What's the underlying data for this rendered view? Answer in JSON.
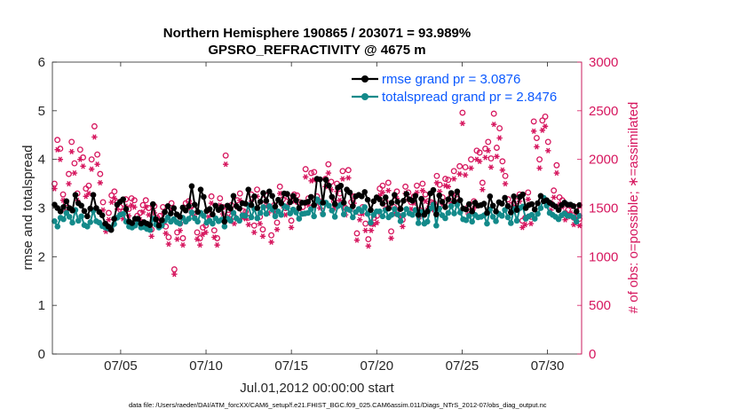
{
  "chart_data": {
    "type": "line",
    "title": "Northern Hemisphere 190865 / 203071 = 93.989%",
    "subtitle": "GPSRO_REFRACTIVITY @ 4675 m",
    "xlabel": "Jul.01,2012 00:00:00 start",
    "ylabel": "rmse and totalspread",
    "ylabel_right": "# of obs: o=possible; ∗=assimilated",
    "footer": "data file: /Users/raeder/DAI/ATM_forcXX/CAM6_setup/f.e21.FHIST_BGC.f09_025.CAM6assim.011/Diags_NTrS_2012-07/obs_diag_output.nc",
    "x_range_days": [
      1,
      32
    ],
    "x_ticks": [
      {
        "day": 5,
        "label": "07/05"
      },
      {
        "day": 10,
        "label": "07/10"
      },
      {
        "day": 15,
        "label": "07/15"
      },
      {
        "day": 20,
        "label": "07/20"
      },
      {
        "day": 25,
        "label": "07/25"
      },
      {
        "day": 30,
        "label": "07/30"
      }
    ],
    "ylim": [
      0,
      6
    ],
    "y_ticks": [
      "0",
      "1",
      "2",
      "3",
      "4",
      "5",
      "6"
    ],
    "ylim_right": [
      0,
      3000
    ],
    "y_ticks_right": [
      "0",
      "500",
      "1000",
      "1500",
      "2000",
      "2500",
      "3000"
    ],
    "legend": {
      "placement": "top-right",
      "entries": [
        "rmse grand pr = 3.0876",
        "totalspread grand pr = 2.8476"
      ]
    },
    "colors": {
      "rmse": "#000000",
      "totalspread": "#138a8a",
      "obs": "#d6165e"
    },
    "series": [
      {
        "name": "rmse",
        "values": [
          3.07,
          3.0,
          2.93,
          3.02,
          3.14,
          3.0,
          2.95,
          3.27,
          3.1,
          3.05,
          2.94,
          2.83,
          2.99,
          3.27,
          3.0,
          2.92,
          2.85,
          2.68,
          2.62,
          2.55,
          2.78,
          3.07,
          3.13,
          3.18,
          2.98,
          2.72,
          2.69,
          2.78,
          2.78,
          2.68,
          2.71,
          2.68,
          2.65,
          3.08,
          2.77,
          2.64,
          2.75,
          2.92,
          3.04,
          2.89,
          3.0,
          2.87,
          2.82,
          3.01,
          2.95,
          3.04,
          3.45,
          3.07,
          2.92,
          3.38,
          3.23,
          2.94,
          2.98,
          2.87,
          3.05,
          2.96,
          3.02,
          2.72,
          3.05,
          2.99,
          3.25,
          3.04,
          2.99,
          3.1,
          3.09,
          3.38,
          3.06,
          3.24,
          3.0,
          3.13,
          3.31,
          3.15,
          3.34,
          3.25,
          3.03,
          3.17,
          3.1,
          3.3,
          3.29,
          3.12,
          3.25,
          3.16,
          3.0,
          3.11,
          3.11,
          3.13,
          3.23,
          3.06,
          3.6,
          3.59,
          3.11,
          3.58,
          3.46,
          3.23,
          3.08,
          3.42,
          3.46,
          3.11,
          3.38,
          3.32,
          3.04,
          3.24,
          3.27,
          3.24,
          3.33,
          3.17,
          2.96,
          3.14,
          3.22,
          3.18,
          3.09,
          3.22,
          2.99,
          3.11,
          3.27,
          3.13,
          2.98,
          3.15,
          3.29,
          3.18,
          3.15,
          3.25,
          2.86,
          3.19,
          2.86,
          2.93,
          3.3,
          3.37,
          2.87,
          3.26,
          3.13,
          3.02,
          3.18,
          3.31,
          3.14,
          3.34,
          3.16,
          2.99,
          2.97,
          3.08,
          2.93,
          3.11,
          3.05,
          3.06,
          3.09,
          2.9,
          3.24,
          3.05,
          2.93,
          3.12,
          3.09,
          3.21,
          3.04,
          2.91,
          3.24,
          2.96,
          3.23,
          3.28,
          3.0,
          3.06,
          3.08,
          2.97,
          3.1,
          3.25,
          3.14,
          3.16,
          3.11,
          3.07,
          3.03,
          2.96,
          3.06,
          3.11,
          3.07,
          3.07,
          3.04,
          2.93,
          3.06
        ]
      },
      {
        "name": "totalspread",
        "values": [
          2.73,
          2.62,
          2.8,
          2.77,
          2.9,
          2.82,
          2.7,
          2.96,
          2.74,
          2.83,
          2.65,
          2.62,
          2.71,
          2.95,
          2.73,
          2.7,
          2.63,
          2.6,
          2.58,
          2.6,
          2.67,
          2.8,
          2.86,
          2.88,
          2.72,
          2.62,
          2.6,
          2.64,
          2.7,
          2.6,
          2.61,
          2.57,
          2.55,
          2.78,
          2.66,
          2.6,
          2.64,
          2.74,
          2.81,
          2.72,
          2.77,
          2.71,
          2.68,
          2.8,
          2.72,
          2.78,
          2.91,
          2.79,
          2.72,
          2.9,
          2.84,
          2.7,
          2.74,
          2.68,
          2.79,
          2.73,
          2.76,
          2.62,
          2.78,
          2.74,
          2.9,
          2.79,
          2.74,
          2.85,
          2.84,
          3.06,
          2.81,
          2.98,
          2.79,
          2.9,
          3.02,
          2.88,
          3.04,
          2.97,
          2.83,
          2.93,
          2.86,
          3.04,
          3.01,
          2.89,
          2.97,
          2.91,
          2.78,
          2.88,
          2.89,
          2.9,
          2.98,
          2.83,
          3.18,
          3.12,
          2.87,
          3.11,
          3.05,
          2.95,
          2.82,
          3.04,
          3.07,
          2.87,
          2.98,
          2.96,
          2.81,
          2.92,
          2.98,
          2.94,
          3.02,
          2.88,
          2.7,
          2.86,
          2.93,
          2.93,
          2.83,
          2.96,
          2.81,
          2.86,
          2.98,
          2.87,
          2.73,
          2.86,
          2.98,
          2.89,
          2.86,
          2.96,
          2.69,
          2.92,
          2.68,
          2.72,
          2.99,
          3.07,
          2.64,
          2.99,
          2.85,
          2.79,
          2.9,
          3.04,
          2.89,
          3.07,
          2.91,
          2.77,
          2.75,
          2.84,
          2.72,
          2.86,
          2.81,
          2.82,
          2.85,
          2.68,
          2.97,
          2.82,
          2.73,
          2.88,
          2.84,
          2.96,
          2.81,
          2.69,
          2.98,
          2.74,
          3.0,
          3.03,
          2.78,
          2.83,
          2.86,
          2.78,
          2.88,
          3.0,
          3.21,
          3.05,
          2.9,
          2.86,
          2.82,
          2.77,
          2.85,
          2.89,
          2.84,
          2.84,
          2.81,
          2.72,
          2.84
        ]
      },
      {
        "name": "obs_possible",
        "values": [
          1750,
          2200,
          2110,
          1640,
          1550,
          1850,
          2180,
          1960,
          1650,
          2100,
          2020,
          1700,
          1730,
          2000,
          2340,
          2050,
          1850,
          1560,
          1330,
          1450,
          1630,
          1670,
          1560,
          1510,
          1460,
          1590,
          1490,
          1600,
          1580,
          1420,
          1450,
          1530,
          1580,
          1500,
          1280,
          1520,
          1400,
          1420,
          1510,
          1310,
          1200,
          1550,
          870,
          1250,
          1340,
          1190,
          1550,
          1570,
          1520,
          1490,
          1250,
          1190,
          1300,
          1320,
          1480,
          1620,
          1270,
          1190,
          1600,
          1510,
          2040,
          1480,
          1530,
          1410,
          1580,
          1650,
          1470,
          1460,
          1400,
          1640,
          1320,
          1690,
          1410,
          1280,
          1630,
          1520,
          1220,
          1530,
          1350,
          1720,
          1590,
          1500,
          1610,
          1370,
          1640,
          1630,
          1560,
          1510,
          1900,
          1600,
          1860,
          1870,
          1620,
          1570,
          1520,
          1800,
          1950,
          1770,
          1570,
          1750,
          1650,
          1880,
          1500,
          1890,
          1560,
          1620,
          1240,
          1450,
          1510,
          1340,
          1180,
          1340,
          1400,
          1420,
          1700,
          1730,
          1570,
          1760,
          1260,
          1510,
          1670,
          1490,
          1380,
          1720,
          1660,
          1560,
          1620,
          1730,
          1480,
          1750,
          1640,
          1570,
          1560,
          1550,
          1830,
          1740,
          1610,
          1800,
          1790,
          1620,
          1880,
          1640,
          1930,
          2480,
          1920,
          1510,
          2000,
          1570,
          2090,
          2070,
          1760,
          2110,
          2180,
          2010,
          2470,
          2120,
          2320,
          1980,
          1830,
          1590,
          1530,
          1550,
          1570,
          1640,
          1370,
          1400,
          1660,
          1410,
          2390,
          2220,
          2000,
          2400,
          2440,
          2180,
          1550,
          1680,
          1940,
          1610,
          1580,
          1450,
          1480,
          1520,
          1400,
          1510,
          1390
        ]
      },
      {
        "name": "obs_assimilated",
        "values": [
          1700,
          2100,
          2000,
          1580,
          1470,
          1750,
          2080,
          1860,
          1580,
          2000,
          1930,
          1620,
          1650,
          1900,
          2230,
          1950,
          1760,
          1480,
          1260,
          1380,
          1560,
          1600,
          1490,
          1440,
          1390,
          1520,
          1420,
          1530,
          1510,
          1350,
          1380,
          1460,
          1510,
          1430,
          1210,
          1450,
          1330,
          1350,
          1440,
          1240,
          1130,
          1480,
          820,
          1180,
          1270,
          1120,
          1480,
          1500,
          1450,
          1420,
          1180,
          1120,
          1230,
          1250,
          1410,
          1550,
          1200,
          1120,
          1530,
          1440,
          1950,
          1410,
          1460,
          1340,
          1510,
          1580,
          1400,
          1390,
          1330,
          1570,
          1250,
          1620,
          1340,
          1210,
          1560,
          1450,
          1150,
          1460,
          1280,
          1650,
          1520,
          1430,
          1540,
          1300,
          1570,
          1560,
          1490,
          1440,
          1820,
          1530,
          1780,
          1790,
          1550,
          1500,
          1450,
          1720,
          1860,
          1690,
          1500,
          1670,
          1580,
          1800,
          1430,
          1810,
          1490,
          1550,
          1170,
          1380,
          1440,
          1270,
          1110,
          1270,
          1330,
          1350,
          1630,
          1660,
          1500,
          1680,
          1190,
          1440,
          1600,
          1420,
          1310,
          1650,
          1590,
          1490,
          1550,
          1660,
          1410,
          1680,
          1570,
          1500,
          1490,
          1480,
          1760,
          1670,
          1540,
          1730,
          1720,
          1550,
          1800,
          1570,
          1850,
          2370,
          1840,
          1440,
          1910,
          1500,
          2000,
          1980,
          1690,
          2020,
          2090,
          1920,
          2360,
          2030,
          2220,
          1890,
          1750,
          1520,
          1460,
          1480,
          1500,
          1570,
          1300,
          1330,
          1590,
          1340,
          2290,
          2130,
          1910,
          2300,
          2340,
          2090,
          1480,
          1610,
          1860,
          1540,
          1510,
          1380,
          1410,
          1450,
          1330,
          1440,
          1320
        ]
      }
    ]
  }
}
